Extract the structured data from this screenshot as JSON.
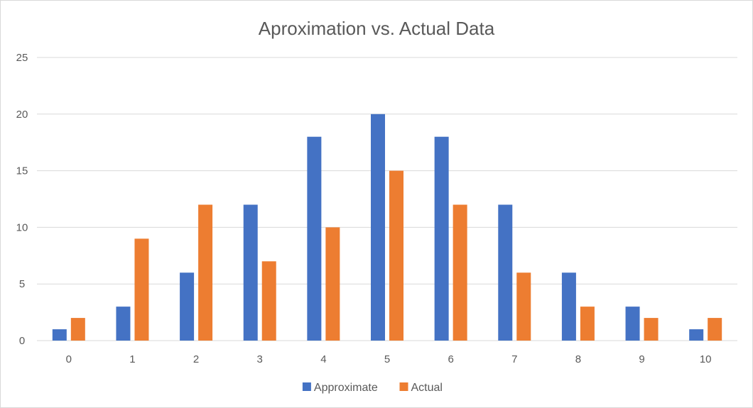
{
  "chart_data": {
    "type": "bar",
    "title": "Aproximation vs. Actual Data",
    "xlabel": "",
    "ylabel": "",
    "categories": [
      "0",
      "1",
      "2",
      "3",
      "4",
      "5",
      "6",
      "7",
      "8",
      "9",
      "10"
    ],
    "series": [
      {
        "name": "Approximate",
        "color": "#4472c4",
        "values": [
          1,
          3,
          6,
          12,
          18,
          20,
          18,
          12,
          6,
          3,
          1
        ]
      },
      {
        "name": "Actual",
        "color": "#ed7d31",
        "values": [
          2,
          9,
          12,
          7,
          10,
          15,
          12,
          6,
          3,
          2,
          2
        ]
      }
    ],
    "ylim": [
      0,
      25
    ],
    "yticks": [
      0,
      5,
      10,
      15,
      20,
      25
    ],
    "grid": true,
    "legend_position": "bottom-center"
  }
}
